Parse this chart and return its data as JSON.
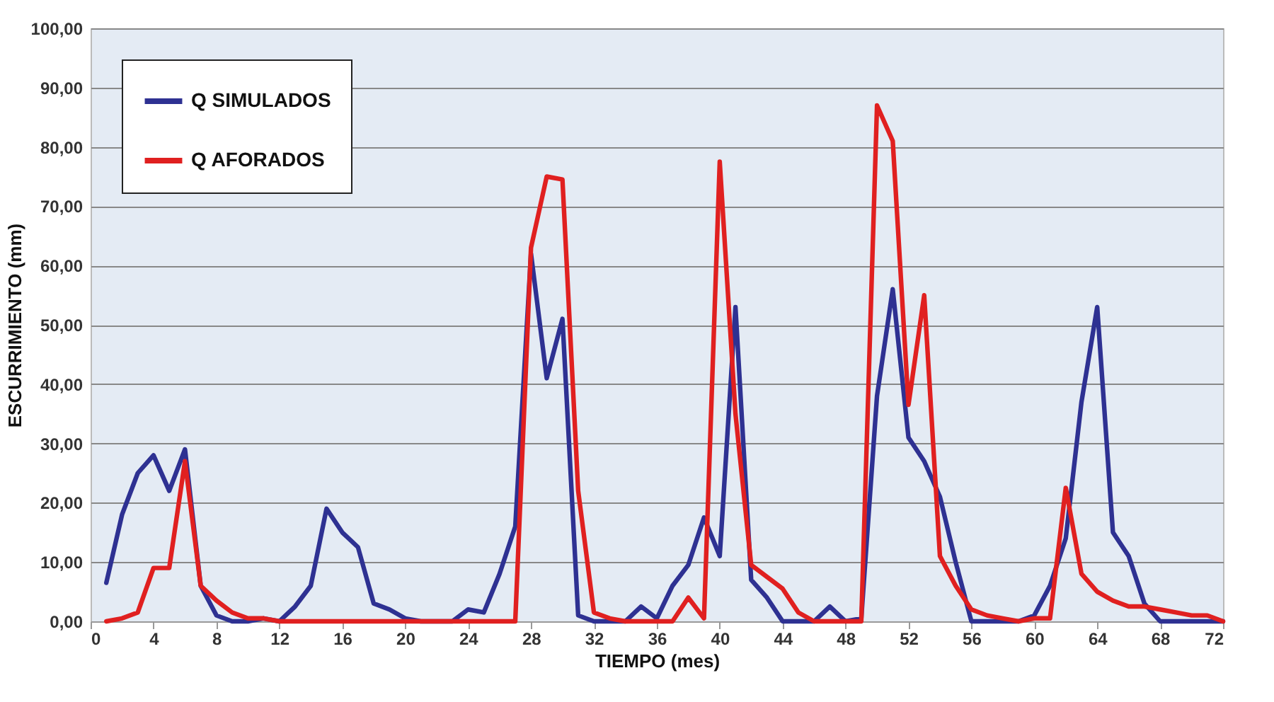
{
  "chart_data": {
    "type": "line",
    "xlabel": "TIEMPO (mes)",
    "ylabel": "ESCURRIMIENTO  (mm)",
    "x": [
      1,
      2,
      3,
      4,
      5,
      6,
      7,
      8,
      9,
      10,
      11,
      12,
      13,
      14,
      15,
      16,
      17,
      18,
      19,
      20,
      21,
      22,
      23,
      24,
      25,
      26,
      27,
      28,
      29,
      30,
      31,
      32,
      33,
      34,
      35,
      36,
      37,
      38,
      39,
      40,
      41,
      42,
      43,
      44,
      45,
      46,
      47,
      48,
      49,
      50,
      51,
      52,
      53,
      54,
      55,
      56,
      57,
      58,
      59,
      60,
      61,
      62,
      63,
      64,
      65,
      66,
      67,
      68,
      69,
      70,
      71,
      72
    ],
    "series": [
      {
        "name": "Q SIMULADOS",
        "color": "#2e3192",
        "values": [
          6.5,
          18,
          25,
          28,
          22,
          29,
          6,
          1,
          0,
          0,
          0.5,
          0,
          2.5,
          6,
          19,
          15,
          12.5,
          3,
          2,
          0.5,
          0,
          0,
          0,
          2,
          1.5,
          8,
          16,
          62,
          41,
          51,
          1,
          0,
          0,
          0,
          2.5,
          0.5,
          6,
          9.5,
          17.5,
          11,
          53,
          7,
          4,
          0,
          0,
          0,
          2.5,
          0,
          0.5,
          38,
          56,
          31,
          27,
          21,
          10,
          0,
          0,
          0,
          0,
          1,
          6,
          14,
          37,
          53,
          15,
          11,
          3,
          0,
          0,
          0,
          0,
          0
        ]
      },
      {
        "name": "Q AFORADOS",
        "color": "#e02020",
        "values": [
          0,
          0.5,
          1.5,
          9,
          9,
          27,
          6,
          3.5,
          1.5,
          0.5,
          0.5,
          0,
          0,
          0,
          0,
          0,
          0,
          0,
          0,
          0,
          0,
          0,
          0,
          0,
          0,
          0,
          0,
          63,
          75,
          74.5,
          22,
          1.5,
          0.5,
          0,
          0,
          0,
          0,
          4,
          0.5,
          77.5,
          35,
          9.5,
          7.5,
          5.5,
          1.5,
          0,
          0,
          0,
          0,
          87,
          81,
          36.5,
          55,
          11,
          6,
          2,
          1,
          0.5,
          0,
          0.5,
          0.5,
          22.5,
          8,
          5,
          3.5,
          2.5,
          2.5,
          2,
          1.5,
          1,
          1,
          0
        ]
      }
    ],
    "xlim": [
      0,
      72
    ],
    "xticks": [
      0,
      4,
      8,
      12,
      16,
      20,
      24,
      28,
      32,
      36,
      40,
      44,
      48,
      52,
      56,
      60,
      64,
      68,
      72
    ],
    "ylim": [
      0,
      100
    ],
    "yticks": [
      {
        "value": 0,
        "label": "0,00"
      },
      {
        "value": 10,
        "label": "10,00"
      },
      {
        "value": 20,
        "label": "20,00"
      },
      {
        "value": 30,
        "label": "30,00"
      },
      {
        "value": 40,
        "label": "40,00"
      },
      {
        "value": 50,
        "label": "50,00"
      },
      {
        "value": 60,
        "label": "60,00"
      },
      {
        "value": 70,
        "label": "70,00"
      },
      {
        "value": 80,
        "label": "80,00"
      },
      {
        "value": 90,
        "label": "90,00"
      },
      {
        "value": 100,
        "label": "100,00"
      }
    ],
    "grid": "y",
    "legend": "top left"
  }
}
